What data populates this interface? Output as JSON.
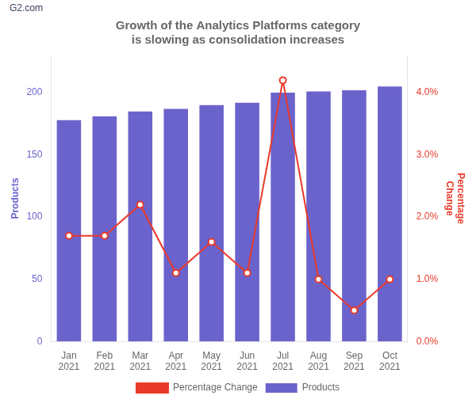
{
  "chart_data": {
    "type": "bar",
    "title": "Growth of the Analytics Platforms category\nis slowing as consolidation increases",
    "annotations": [
      "G2.com"
    ],
    "categories": [
      "Jan\n2021",
      "Feb\n2021",
      "Mar\n2021",
      "Apr\n2021",
      "May\n2021",
      "Jun\n2021",
      "Jul\n2021",
      "Aug\n2021",
      "Sep\n2021",
      "Oct\n2021"
    ],
    "series": [
      {
        "name": "Products",
        "type": "bar",
        "color": "#6B63CC",
        "values": [
          178,
          181,
          185,
          187,
          190,
          192,
          200,
          201,
          202,
          205
        ]
      },
      {
        "name": "Percentage Change",
        "type": "line",
        "color": "#E8392A",
        "marker": "o",
        "axis": "y2",
        "values": [
          0.017,
          0.017,
          0.022,
          0.011,
          0.016,
          0.011,
          0.042,
          0.01,
          0.005,
          0.01
        ]
      }
    ],
    "y_label": "Products",
    "y2_label": "Percentage\nChange",
    "ylim": [
      0,
      230
    ],
    "yticks": [
      0,
      50,
      100,
      150,
      200
    ],
    "y2lim": [
      0.0,
      0.046
    ],
    "y2ticks": [
      {
        "value": 0.0,
        "label": "0.0%"
      },
      {
        "value": 0.01,
        "label": "1.0%"
      },
      {
        "value": 0.02,
        "label": "2.0%"
      },
      {
        "value": 0.03,
        "label": "3.0%"
      },
      {
        "value": 0.04,
        "label": "4.0%"
      }
    ],
    "grid": false,
    "legend": "bottom"
  }
}
